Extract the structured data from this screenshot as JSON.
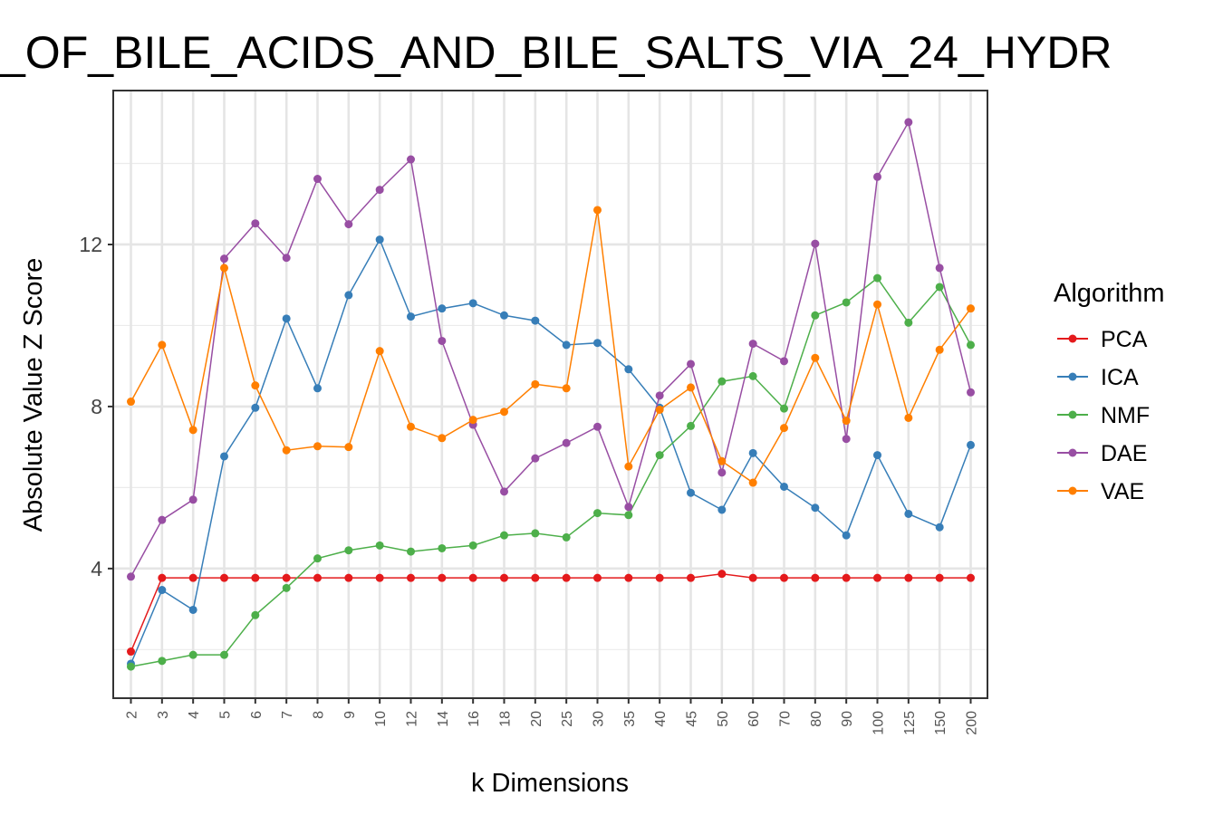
{
  "chart_data": {
    "type": "line",
    "title": "_OF_BILE_ACIDS_AND_BILE_SALTS_VIA_24_HYDR",
    "xlabel": "k Dimensions",
    "ylabel": "Absolute Value Z Score",
    "categories": [
      "2",
      "3",
      "4",
      "5",
      "6",
      "7",
      "8",
      "9",
      "10",
      "12",
      "14",
      "16",
      "18",
      "20",
      "25",
      "30",
      "35",
      "40",
      "45",
      "50",
      "60",
      "70",
      "80",
      "90",
      "100",
      "125",
      "150",
      "200"
    ],
    "ylim": [
      0.8,
      15.8
    ],
    "yticks": [
      4,
      8,
      12
    ],
    "grid": true,
    "legend": {
      "title": "Algorithm",
      "placement": "right"
    },
    "series": [
      {
        "name": "PCA",
        "color": "#E41A1C",
        "values": [
          1.95,
          3.77,
          3.77,
          3.77,
          3.77,
          3.77,
          3.77,
          3.77,
          3.77,
          3.77,
          3.77,
          3.77,
          3.77,
          3.77,
          3.77,
          3.77,
          3.77,
          3.77,
          3.77,
          3.87,
          3.77,
          3.77,
          3.77,
          3.77,
          3.77,
          3.77,
          3.77,
          3.77
        ]
      },
      {
        "name": "ICA",
        "color": "#377EB8",
        "values": [
          1.65,
          3.47,
          2.98,
          6.77,
          7.97,
          10.17,
          8.45,
          10.75,
          12.12,
          10.22,
          10.42,
          10.55,
          10.25,
          10.12,
          9.52,
          9.57,
          8.92,
          7.97,
          5.87,
          5.45,
          6.85,
          6.02,
          5.5,
          4.82,
          6.8,
          5.35,
          5.02,
          7.05
        ]
      },
      {
        "name": "NMF",
        "color": "#4DAF4A",
        "values": [
          1.58,
          1.72,
          1.87,
          1.87,
          2.85,
          3.52,
          4.25,
          4.45,
          4.57,
          4.42,
          4.5,
          4.57,
          4.82,
          4.87,
          4.77,
          5.37,
          5.32,
          6.8,
          7.52,
          8.62,
          8.75,
          7.95,
          10.25,
          10.57,
          11.17,
          10.07,
          10.95,
          9.52
        ]
      },
      {
        "name": "DAE",
        "color": "#984EA3",
        "values": [
          3.8,
          5.2,
          5.7,
          11.65,
          12.52,
          11.67,
          13.62,
          12.5,
          13.35,
          14.1,
          9.62,
          7.55,
          5.9,
          6.72,
          7.1,
          7.5,
          5.52,
          8.27,
          9.05,
          6.37,
          9.55,
          9.12,
          12.02,
          7.2,
          13.67,
          15.02,
          11.42,
          8.35
        ]
      },
      {
        "name": "VAE",
        "color": "#FF7F00",
        "values": [
          8.12,
          9.52,
          7.42,
          11.42,
          8.52,
          6.92,
          7.02,
          7.0,
          9.37,
          7.5,
          7.22,
          7.67,
          7.87,
          8.55,
          8.45,
          12.85,
          6.52,
          7.92,
          8.47,
          6.65,
          6.12,
          7.47,
          9.2,
          7.65,
          10.52,
          7.72,
          9.4,
          10.42
        ]
      }
    ]
  }
}
